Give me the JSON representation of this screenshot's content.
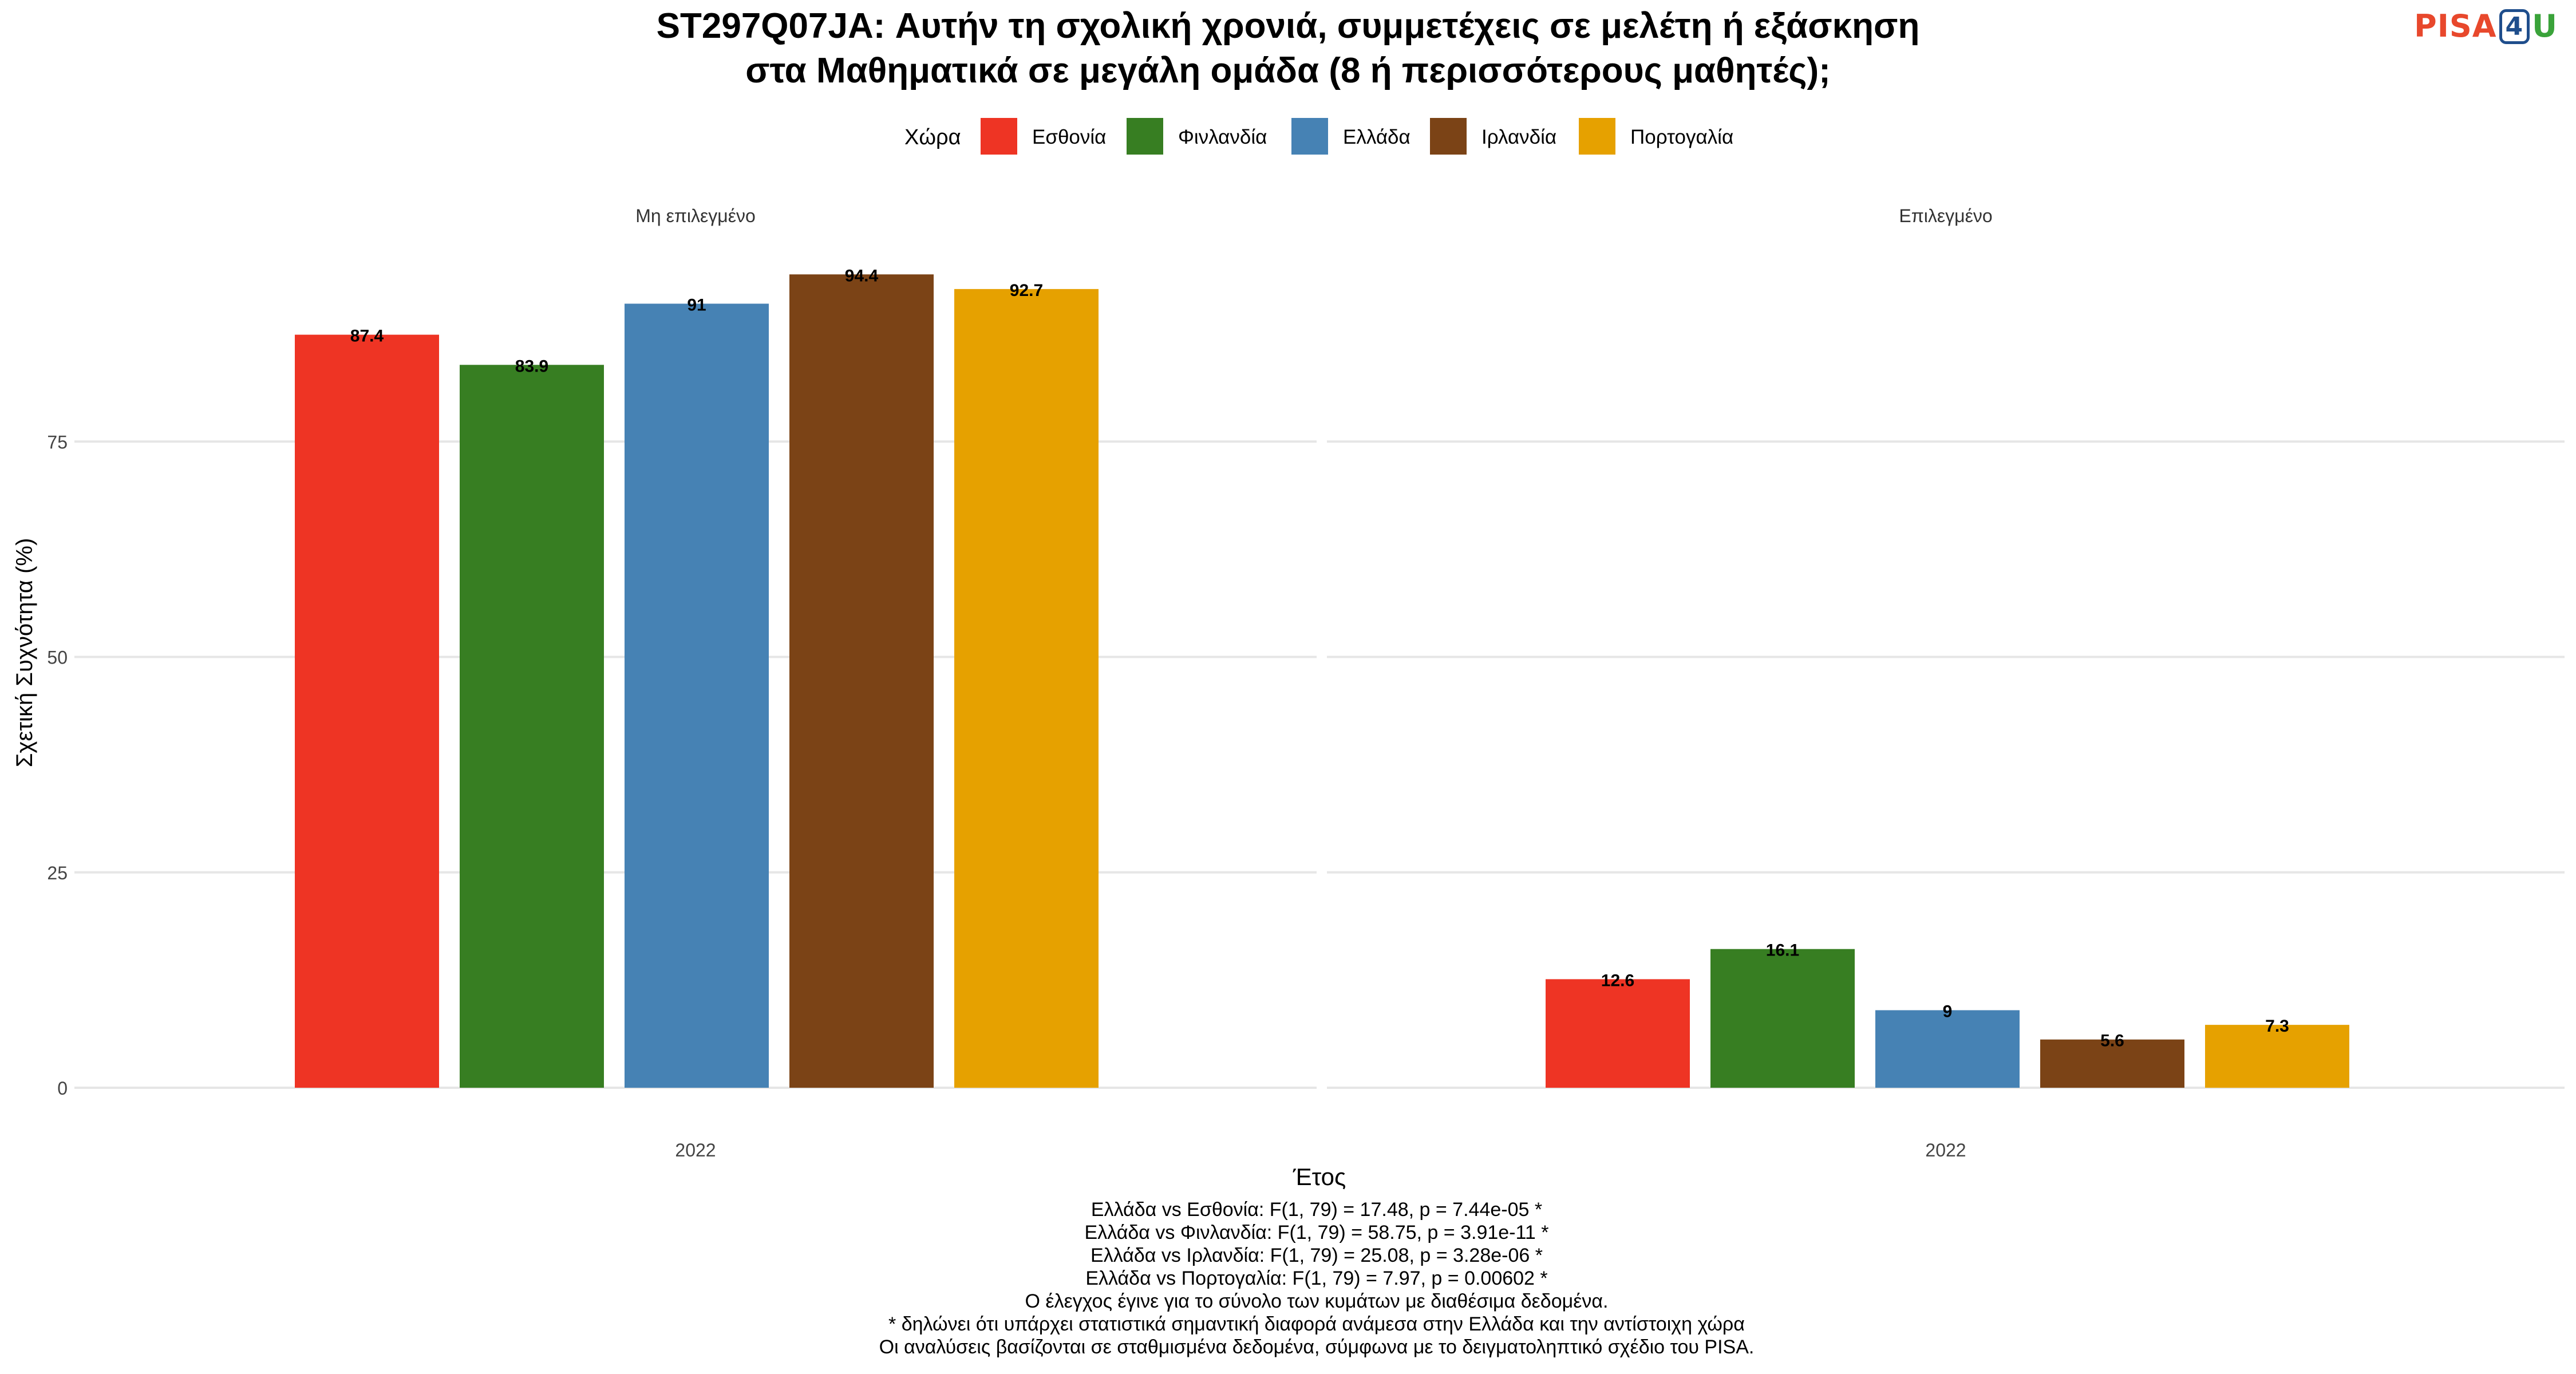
{
  "logo": {
    "part1": "PISA",
    "part2": "4",
    "part3": "U"
  },
  "chart_data": {
    "type": "bar",
    "title": [
      "ST297Q07JA: Αυτήν τη σχολική χρονιά, συμμετέχεις σε μελέτη ή εξάσκηση",
      "στα Μαθηματικά σε μεγάλη ομάδα (8 ή περισσότερους μαθητές);"
    ],
    "legend_title": "Χώρα",
    "legend_position": "top",
    "xlabel": "Έτος",
    "ylabel": "Σχετική Συχνότητα (%)",
    "ylim": [
      0,
      100
    ],
    "yticks": [
      0,
      25,
      50,
      75
    ],
    "grid": true,
    "categories": [
      "2022"
    ],
    "colors": {
      "Εσθονία": "#ee3424",
      "Φινλανδία": "#377e22",
      "Ελλάδα": "#4682b4",
      "Ιρλανδία": "#7b4316",
      "Πορτογαλία": "#e6a100"
    },
    "series_names": [
      "Εσθονία",
      "Φινλανδία",
      "Ελλάδα",
      "Ιρλανδία",
      "Πορτογαλία"
    ],
    "panels": [
      {
        "label": "Μη επιλεγμένο",
        "series": [
          {
            "name": "Εσθονία",
            "values": [
              87.4
            ],
            "label": "87.4"
          },
          {
            "name": "Φινλανδία",
            "values": [
              83.9
            ],
            "label": "83.9"
          },
          {
            "name": "Ελλάδα",
            "values": [
              91
            ],
            "label": "91"
          },
          {
            "name": "Ιρλανδία",
            "values": [
              94.4
            ],
            "label": "94.4"
          },
          {
            "name": "Πορτογαλία",
            "values": [
              92.7
            ],
            "label": "92.7"
          }
        ]
      },
      {
        "label": "Επιλεγμένο",
        "series": [
          {
            "name": "Εσθονία",
            "values": [
              12.6
            ],
            "label": "12.6"
          },
          {
            "name": "Φινλανδία",
            "values": [
              16.1
            ],
            "label": "16.1"
          },
          {
            "name": "Ελλάδα",
            "values": [
              9
            ],
            "label": "9"
          },
          {
            "name": "Ιρλανδία",
            "values": [
              5.6
            ],
            "label": "5.6"
          },
          {
            "name": "Πορτογαλία",
            "values": [
              7.3
            ],
            "label": "7.3"
          }
        ]
      }
    ],
    "caption": [
      "Ελλάδα vs Εσθονία: F(1, 79) = 17.48, p = 7.44e-05 *",
      "Ελλάδα vs Φινλανδία: F(1, 79) = 58.75, p = 3.91e-11 *",
      "Ελλάδα vs Ιρλανδία: F(1, 79) = 25.08, p = 3.28e-06 *",
      "Ελλάδα vs Πορτογαλία: F(1, 79) = 7.97, p = 0.00602 *",
      "Ο έλεγχος έγινε για το σύνολο των κυμάτων με διαθέσιμα δεδομένα.",
      "* δηλώνει ότι υπάρχει στατιστικά σημαντική διαφορά ανάμεσα στην Ελλάδα και την αντίστοιχη χώρα",
      "Οι αναλύσεις βασίζονται σε σταθμισμένα δεδομένα, σύμφωνα με το δειγματοληπτικό σχέδιο του PISA."
    ]
  }
}
